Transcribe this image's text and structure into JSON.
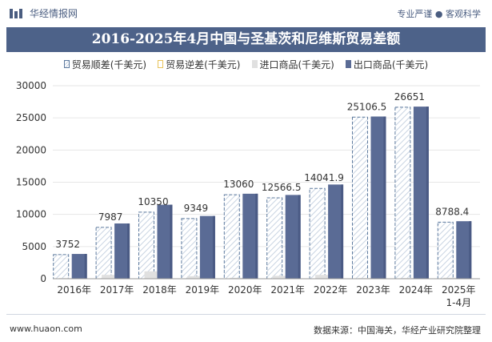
{
  "header": {
    "brand": "华经情报网",
    "tags": "专业严谨 ● 客观科学",
    "title": "2016-2025年4月中国与圣基茨和尼维斯贸易差额"
  },
  "footer": {
    "site": "www.huaon.com",
    "source": "数据来源：中国海关，华经产业研究院整理"
  },
  "colors": {
    "export": "#5a6b95",
    "export_dark": "#4a5a84",
    "import": "#e0e0e0",
    "surplus_stroke": "#5d7a9e",
    "surplus_hatch": "#c9d4e2",
    "deficit_stroke": "#e8c35a",
    "title_band": "#4d6289",
    "grid": "#e6e6e6"
  },
  "chart_data": {
    "type": "bar",
    "title": "2016-2025年4月中国与圣基茨和尼维斯贸易差额",
    "categories": [
      "2016年",
      "2017年",
      "2018年",
      "2019年",
      "2020年",
      "2021年",
      "2022年",
      "2023年",
      "2024年",
      "2025年 1-4月"
    ],
    "series": [
      {
        "name": "贸易顺差(千美元)",
        "values": [
          3752,
          7987,
          10350,
          9349,
          13060,
          12566.5,
          14041.9,
          25106.5,
          26651,
          8788.4
        ],
        "labels": [
          "3752",
          "7987",
          "10350",
          "9349",
          "13060",
          "12566.5",
          "14041.9",
          "25106.5",
          "26651",
          "8788.4"
        ]
      },
      {
        "name": "贸易逆差(千美元)",
        "values": [
          0,
          0,
          0,
          0,
          0,
          0,
          0,
          0,
          0,
          0
        ]
      },
      {
        "name": "进口商品(千美元)",
        "values": [
          100,
          600,
          1150,
          400,
          150,
          450,
          600,
          100,
          100,
          150
        ]
      },
      {
        "name": "出口商品(千美元)",
        "values": [
          3850,
          8590,
          11500,
          9750,
          13210,
          13020,
          14640,
          25210,
          26750,
          8940
        ]
      }
    ],
    "ylim": [
      0,
      30000
    ],
    "yticks": [
      0,
      5000,
      10000,
      15000,
      20000,
      25000,
      30000
    ],
    "xlabel": "",
    "ylabel": "",
    "grid": true,
    "legend_position": "top"
  }
}
